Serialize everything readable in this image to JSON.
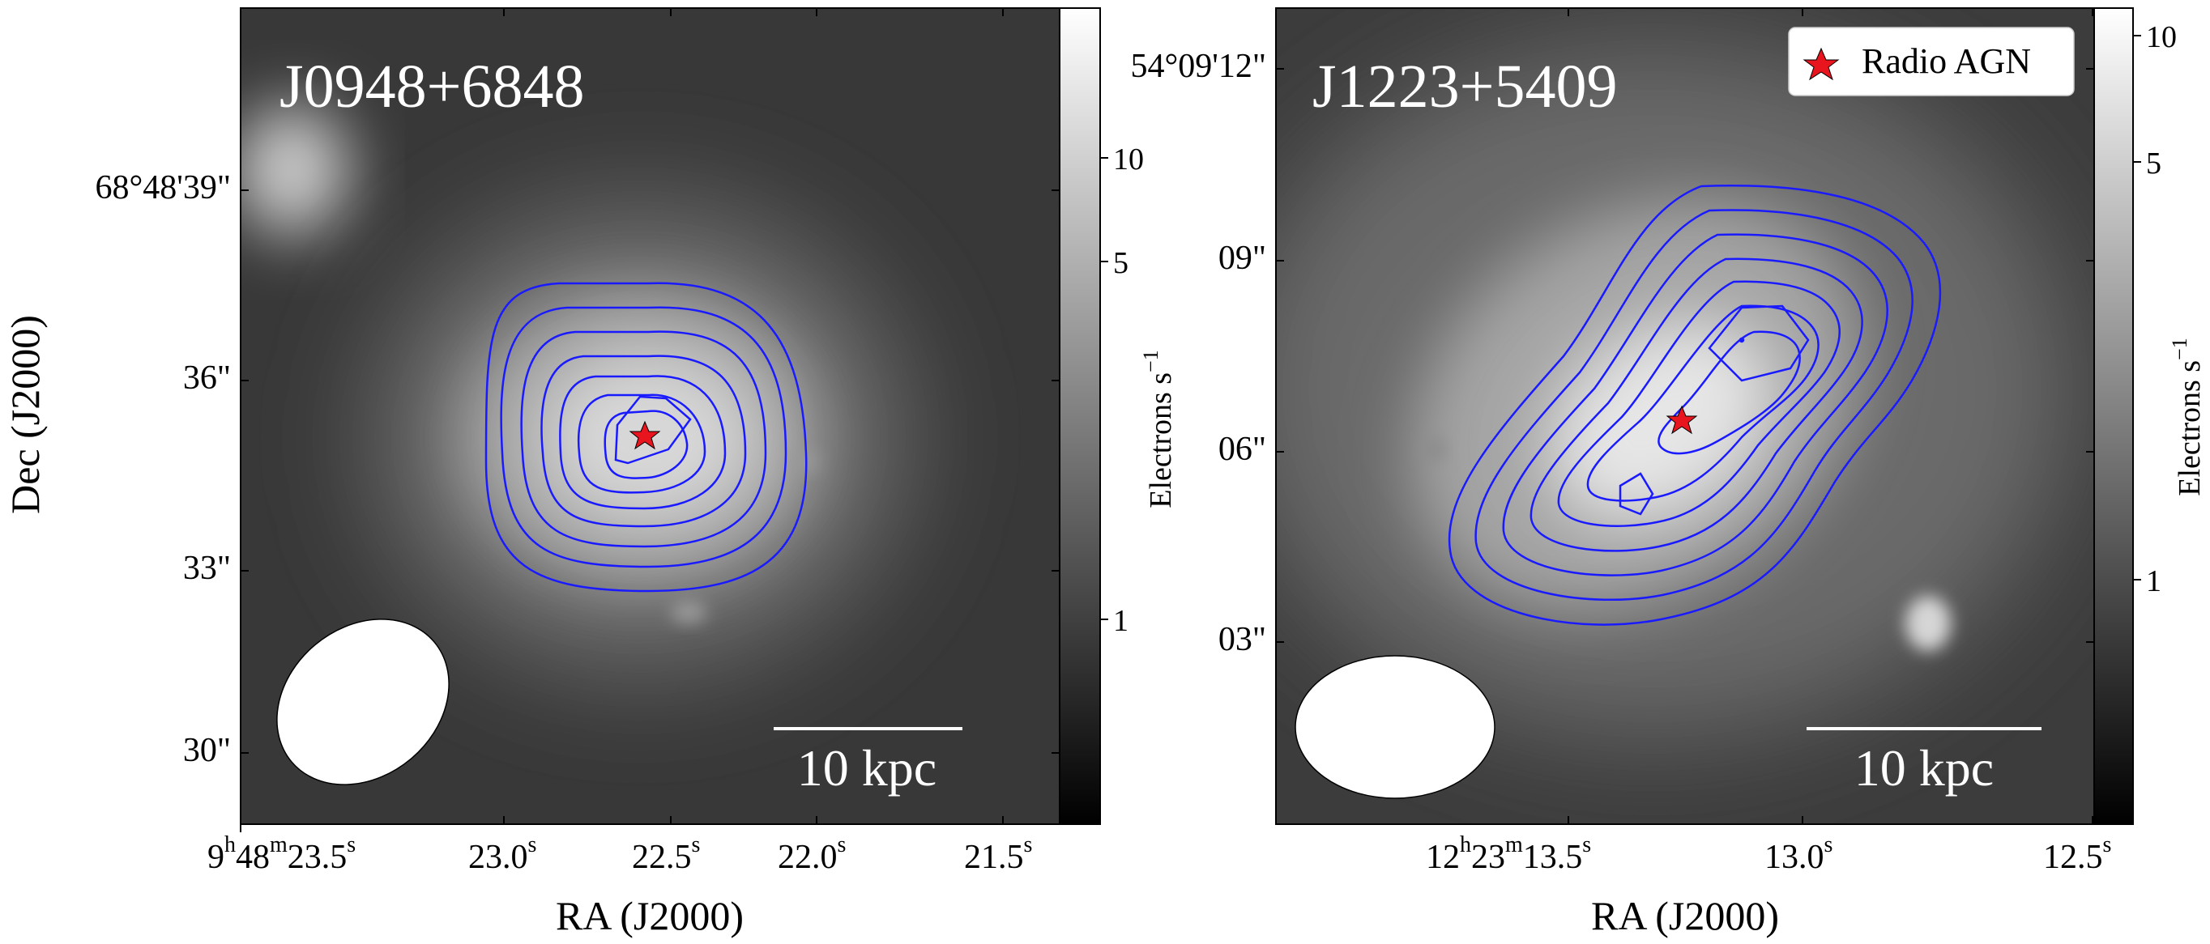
{
  "y_axis_label": "Dec (J2000)",
  "legend_label": "Radio AGN",
  "panels": [
    {
      "title": "J0948+6848",
      "x_label": "RA (J2000)",
      "x_ticks": [
        {
          "h": "9",
          "m": "48",
          "s": "23.5"
        },
        {
          "s": "23.0"
        },
        {
          "s": "22.5"
        },
        {
          "s": "22.0"
        },
        {
          "s": "21.5"
        }
      ],
      "y_ticks": [
        "68°48'39\"",
        "36\"",
        "33\"",
        "30\""
      ],
      "scalebar_label": "10 kpc",
      "colorbar_label": "Electrons s",
      "colorbar_label_exp": "−1",
      "colorbar_ticks": [
        "10",
        "5",
        "1"
      ]
    },
    {
      "title": "J1223+5409",
      "x_label": "RA (J2000)",
      "x_ticks": [
        {
          "h": "12",
          "m": "23",
          "s": "13.5"
        },
        {
          "s": "13.0"
        },
        {
          "s": "12.5"
        }
      ],
      "y_ticks": [
        "54°09'12\"",
        "09\"",
        "06\"",
        "03\""
      ],
      "scalebar_label": "10 kpc",
      "colorbar_label": "Electrons s",
      "colorbar_label_exp": "−1",
      "colorbar_ticks": [
        "10",
        "5",
        "1"
      ]
    }
  ],
  "colors": {
    "contour": "#1a1aff",
    "marker": "#e8141e",
    "background": "#3a3a3a"
  }
}
